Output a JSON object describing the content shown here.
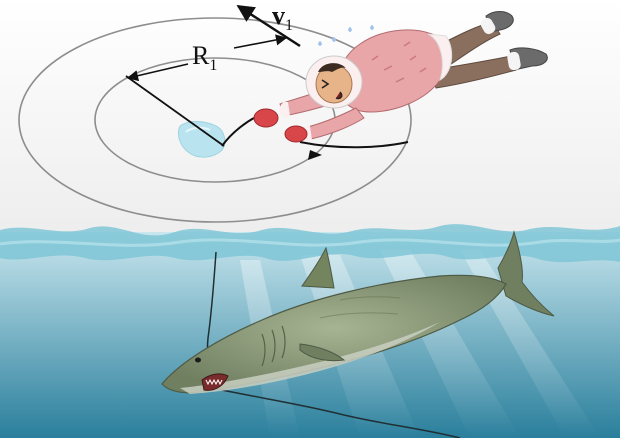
{
  "labels": {
    "radius_main": "R",
    "radius_sub": "1",
    "velocity_main": "v",
    "velocity_sub": "1"
  },
  "colors": {
    "ice": "#f2f2f2",
    "water_top": "#c8e6ee",
    "water_bottom": "#2a7f9c",
    "ice_edge": "#7fc6d6",
    "hole": "#b9e4ef",
    "coat": "#e8a6a8",
    "coat_trim": "#fbeff0",
    "pants": "#8a6f5e",
    "boots": "#6b6b6b",
    "mittens": "#d9464a",
    "shark_body": "#8a9a78",
    "shark_belly": "#c9cfc1",
    "rope": "#2a2a2a",
    "circle": "#8d8d8d"
  },
  "icons": {
    "skater": "person-skating-icon",
    "shark": "shark-icon",
    "ice_hole": "ice-hole-icon"
  }
}
